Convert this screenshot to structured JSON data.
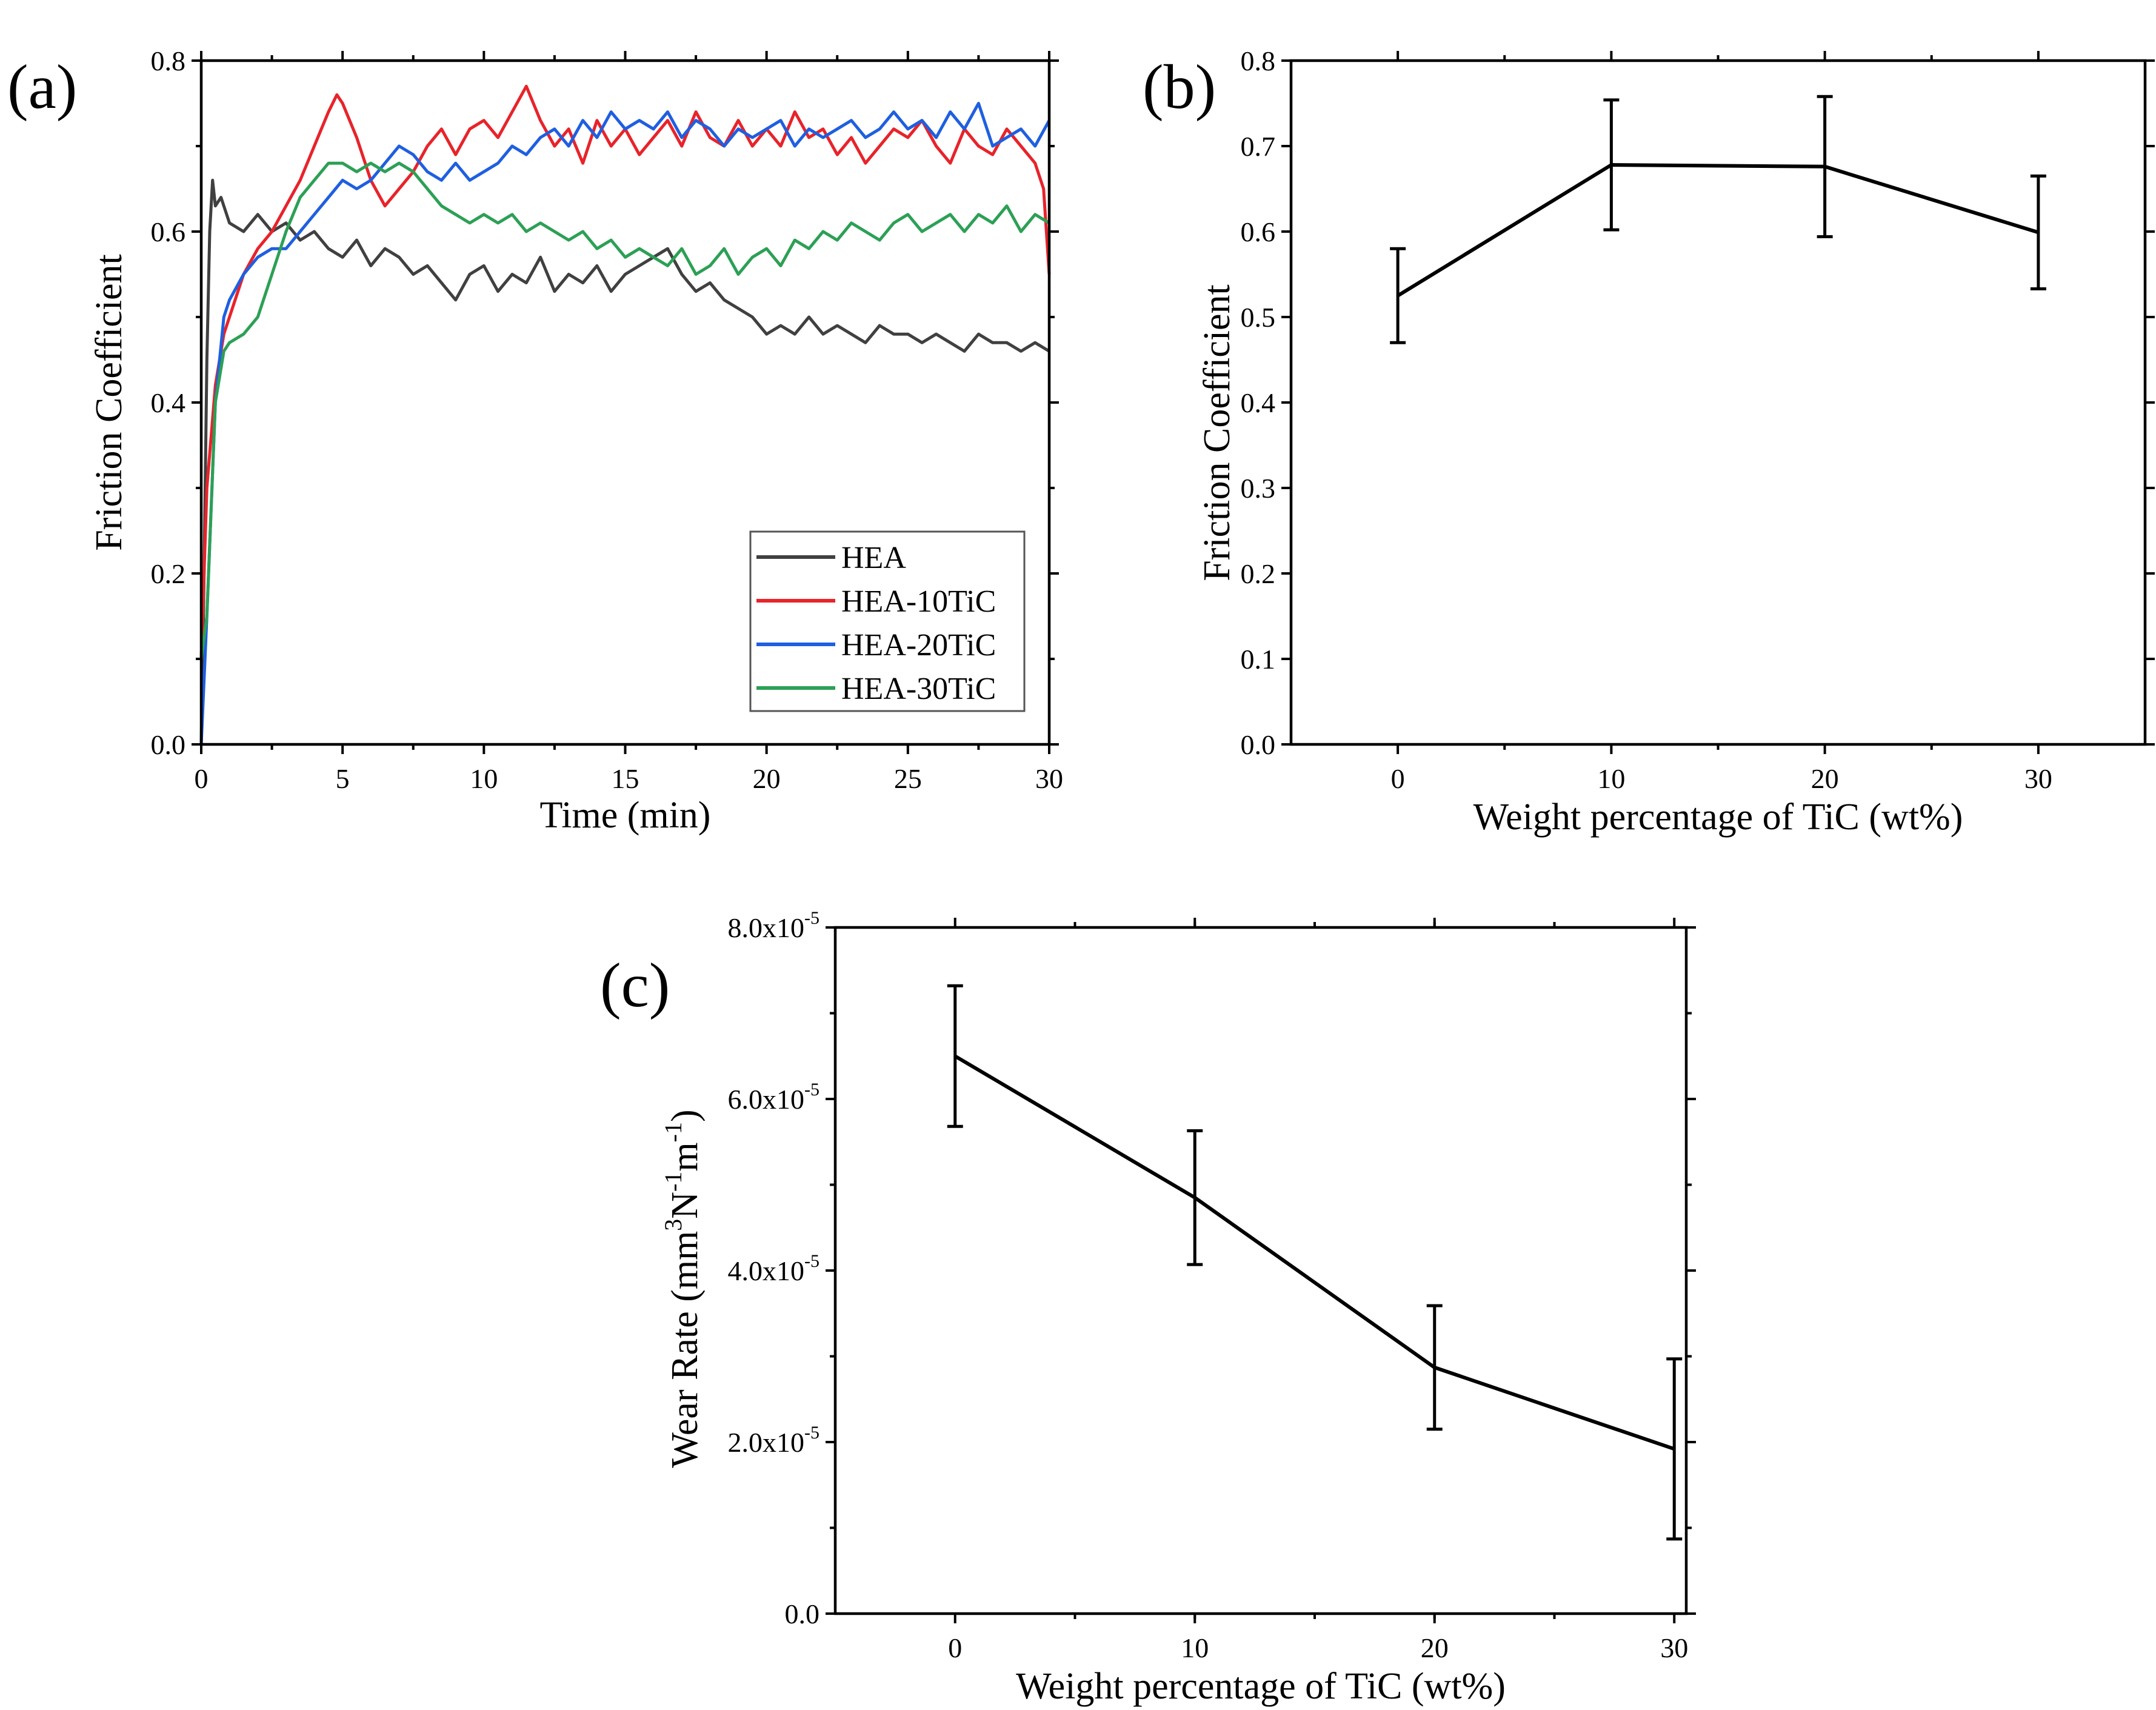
{
  "chart_data": [
    {
      "panel_label": "(a)",
      "type": "line",
      "xlabel": "Time (min)",
      "ylabel": "Friction Coefficient",
      "xlim": [
        0,
        30
      ],
      "ylim": [
        0,
        0.8
      ],
      "x_ticks": [
        0,
        5,
        10,
        15,
        20,
        25,
        30
      ],
      "x_tick_labels": [
        "0",
        "5",
        "10",
        "15",
        "20",
        "25",
        "30"
      ],
      "y_ticks": [
        0,
        0.2,
        0.4,
        0.6,
        0.8
      ],
      "y_tick_labels": [
        "0.0",
        "0.2",
        "0.4",
        "0.6",
        "0.8"
      ],
      "legend_placement": "bottom-right",
      "series": [
        {
          "name": "HEA",
          "color": "#404040",
          "x": [
            0,
            0.1,
            0.2,
            0.3,
            0.4,
            0.5,
            0.7,
            1,
            1.5,
            2,
            2.5,
            3,
            3.5,
            4,
            4.5,
            5,
            5.5,
            6,
            6.5,
            7,
            7.5,
            8,
            8.5,
            9,
            9.5,
            10,
            10.5,
            11,
            11.5,
            12,
            12.5,
            13,
            13.5,
            14,
            14.5,
            15,
            15.5,
            16,
            16.5,
            17,
            17.5,
            18,
            18.5,
            19,
            19.5,
            20,
            20.5,
            21,
            21.5,
            22,
            22.5,
            23,
            23.5,
            24,
            24.5,
            25,
            25.5,
            26,
            26.5,
            27,
            27.5,
            28,
            28.5,
            29,
            29.5,
            30
          ],
          "y": [
            0.0,
            0.2,
            0.45,
            0.6,
            0.66,
            0.63,
            0.64,
            0.61,
            0.6,
            0.62,
            0.6,
            0.61,
            0.59,
            0.6,
            0.58,
            0.57,
            0.59,
            0.56,
            0.58,
            0.57,
            0.55,
            0.56,
            0.54,
            0.52,
            0.55,
            0.56,
            0.53,
            0.55,
            0.54,
            0.57,
            0.53,
            0.55,
            0.54,
            0.56,
            0.53,
            0.55,
            0.56,
            0.57,
            0.58,
            0.55,
            0.53,
            0.54,
            0.52,
            0.51,
            0.5,
            0.48,
            0.49,
            0.48,
            0.5,
            0.48,
            0.49,
            0.48,
            0.47,
            0.49,
            0.48,
            0.48,
            0.47,
            0.48,
            0.47,
            0.46,
            0.48,
            0.47,
            0.47,
            0.46,
            0.47,
            0.46
          ]
        },
        {
          "name": "HEA-10TiC",
          "color": "#e8232a",
          "x": [
            0,
            0.2,
            0.5,
            0.8,
            1,
            1.5,
            2,
            2.5,
            3,
            3.5,
            4,
            4.5,
            4.8,
            5,
            5.5,
            6,
            6.5,
            7,
            7.5,
            8,
            8.5,
            9,
            9.5,
            10,
            10.5,
            11,
            11.5,
            12,
            12.5,
            13,
            13.5,
            14,
            14.5,
            15,
            15.5,
            16,
            16.5,
            17,
            17.5,
            18,
            18.5,
            19,
            19.5,
            20,
            20.5,
            21,
            21.5,
            22,
            22.5,
            23,
            23.5,
            24,
            24.5,
            25,
            25.5,
            26,
            26.5,
            27,
            27.5,
            28,
            28.5,
            29,
            29.5,
            29.8,
            30
          ],
          "y": [
            0.1,
            0.3,
            0.42,
            0.48,
            0.5,
            0.55,
            0.58,
            0.6,
            0.63,
            0.66,
            0.7,
            0.74,
            0.76,
            0.75,
            0.71,
            0.66,
            0.63,
            0.65,
            0.67,
            0.7,
            0.72,
            0.69,
            0.72,
            0.73,
            0.71,
            0.74,
            0.77,
            0.73,
            0.7,
            0.72,
            0.68,
            0.73,
            0.7,
            0.72,
            0.69,
            0.71,
            0.73,
            0.7,
            0.74,
            0.71,
            0.7,
            0.73,
            0.7,
            0.72,
            0.7,
            0.74,
            0.71,
            0.72,
            0.69,
            0.71,
            0.68,
            0.7,
            0.72,
            0.71,
            0.73,
            0.7,
            0.68,
            0.72,
            0.7,
            0.69,
            0.72,
            0.7,
            0.68,
            0.65,
            0.55
          ]
        },
        {
          "name": "HEA-20TiC",
          "color": "#1f5fe0",
          "x": [
            0,
            0.2,
            0.5,
            0.8,
            1,
            1.5,
            2,
            2.5,
            3,
            3.5,
            4,
            4.5,
            5,
            5.5,
            6,
            6.5,
            7,
            7.5,
            8,
            8.5,
            9,
            9.5,
            10,
            10.5,
            11,
            11.5,
            12,
            12.5,
            13,
            13.5,
            14,
            14.5,
            15,
            15.5,
            16,
            16.5,
            17,
            17.5,
            18,
            18.5,
            19,
            19.5,
            20,
            20.5,
            21,
            21.5,
            22,
            22.5,
            23,
            23.5,
            24,
            24.5,
            25,
            25.5,
            26,
            26.5,
            27,
            27.5,
            28,
            28.5,
            29,
            29.5,
            30
          ],
          "y": [
            0.0,
            0.15,
            0.4,
            0.5,
            0.52,
            0.55,
            0.57,
            0.58,
            0.58,
            0.6,
            0.62,
            0.64,
            0.66,
            0.65,
            0.66,
            0.68,
            0.7,
            0.69,
            0.67,
            0.66,
            0.68,
            0.66,
            0.67,
            0.68,
            0.7,
            0.69,
            0.71,
            0.72,
            0.7,
            0.73,
            0.71,
            0.74,
            0.72,
            0.73,
            0.72,
            0.74,
            0.71,
            0.73,
            0.72,
            0.7,
            0.72,
            0.71,
            0.72,
            0.73,
            0.7,
            0.72,
            0.71,
            0.72,
            0.73,
            0.71,
            0.72,
            0.74,
            0.72,
            0.73,
            0.71,
            0.74,
            0.72,
            0.75,
            0.7,
            0.71,
            0.72,
            0.7,
            0.73
          ]
        },
        {
          "name": "HEA-30TiC",
          "color": "#2ca055",
          "x": [
            0,
            0.2,
            0.5,
            0.8,
            1,
            1.5,
            2,
            2.5,
            3,
            3.5,
            4,
            4.5,
            5,
            5.5,
            6,
            6.5,
            7,
            7.5,
            8,
            8.5,
            9,
            9.5,
            10,
            10.5,
            11,
            11.5,
            12,
            12.5,
            13,
            13.5,
            14,
            14.5,
            15,
            15.5,
            16,
            16.5,
            17,
            17.5,
            18,
            18.5,
            19,
            19.5,
            20,
            20.5,
            21,
            21.5,
            22,
            22.5,
            23,
            23.5,
            24,
            24.5,
            25,
            25.5,
            26,
            26.5,
            27,
            27.5,
            28,
            28.5,
            29,
            29.5,
            30
          ],
          "y": [
            0.1,
            0.15,
            0.4,
            0.46,
            0.47,
            0.48,
            0.5,
            0.55,
            0.6,
            0.64,
            0.66,
            0.68,
            0.68,
            0.67,
            0.68,
            0.67,
            0.68,
            0.67,
            0.65,
            0.63,
            0.62,
            0.61,
            0.62,
            0.61,
            0.62,
            0.6,
            0.61,
            0.6,
            0.59,
            0.6,
            0.58,
            0.59,
            0.57,
            0.58,
            0.57,
            0.56,
            0.58,
            0.55,
            0.56,
            0.58,
            0.55,
            0.57,
            0.58,
            0.56,
            0.59,
            0.58,
            0.6,
            0.59,
            0.61,
            0.6,
            0.59,
            0.61,
            0.62,
            0.6,
            0.61,
            0.62,
            0.6,
            0.62,
            0.61,
            0.63,
            0.6,
            0.62,
            0.61
          ]
        }
      ]
    },
    {
      "panel_label": "(b)",
      "type": "line",
      "xlabel": "Weight percentage of TiC (wt%)",
      "ylabel": "Friction Coefficient",
      "xlim": [
        -5,
        35
      ],
      "ylim": [
        0,
        0.8
      ],
      "x_ticks": [
        0,
        10,
        20,
        30
      ],
      "x_tick_labels": [
        "0",
        "10",
        "20",
        "30"
      ],
      "y_ticks": [
        0,
        0.1,
        0.2,
        0.3,
        0.4,
        0.5,
        0.6,
        0.7,
        0.8
      ],
      "y_tick_labels": [
        "0.0",
        "0.1",
        "0.2",
        "0.3",
        "0.4",
        "0.5",
        "0.6",
        "0.7",
        "0.8"
      ],
      "series": [
        {
          "x": [
            0,
            10,
            20,
            30
          ],
          "y": [
            0.525,
            0.678,
            0.676,
            0.599
          ],
          "err": [
            0.055,
            0.076,
            0.082,
            0.066
          ],
          "color": "#000000"
        }
      ]
    },
    {
      "panel_label": "(c)",
      "type": "line",
      "xlabel": "Weight percentage of TiC (wt%)",
      "ylabel_parts": [
        "Wear Rate (mm",
        "3",
        "N",
        "-1",
        "m",
        "-1",
        ")"
      ],
      "xlim": [
        -5,
        30.5
      ],
      "ylim": [
        0,
        8e-05
      ],
      "x_ticks": [
        0,
        10,
        20,
        30
      ],
      "x_tick_labels": [
        "0",
        "10",
        "20",
        "30"
      ],
      "y_ticks": [
        0,
        2e-05,
        4e-05,
        6e-05,
        8e-05
      ],
      "y_tick_labels": [
        {
          "base": "0.0",
          "exp": ""
        },
        {
          "base": "2.0x10",
          "exp": "-5"
        },
        {
          "base": "4.0x10",
          "exp": "-5"
        },
        {
          "base": "6.0x10",
          "exp": "-5"
        },
        {
          "base": "8.0x10",
          "exp": "-5"
        }
      ],
      "series": [
        {
          "x": [
            0,
            10,
            20,
            30
          ],
          "y": [
            6.5e-05,
            4.85e-05,
            2.87e-05,
            1.92e-05
          ],
          "err": [
            8.2e-06,
            7.8e-06,
            7.2e-06,
            1.05e-05
          ],
          "color": "#000000"
        }
      ]
    }
  ]
}
